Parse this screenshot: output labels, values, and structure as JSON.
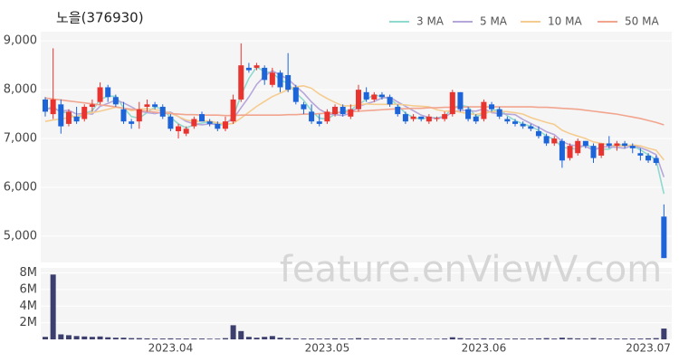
{
  "watermark": "feature.enViewV.com",
  "chart_data": [
    {
      "type": "candlestick",
      "title": "노을(376930)",
      "up_color": "#e8332f",
      "down_color": "#1c64d8",
      "open": [
        7800,
        7500,
        7700,
        7300,
        7450,
        7400,
        7650,
        7750,
        8050,
        7850,
        7600,
        7350,
        7350,
        7650,
        7700,
        7650,
        7450,
        7150,
        7100,
        7250,
        7500,
        7350,
        7300,
        7200,
        7350,
        7800,
        8450,
        8450,
        8450,
        8100,
        8350,
        8300,
        8050,
        7700,
        7550,
        7350,
        7350,
        7500,
        7650,
        7450,
        7600,
        7950,
        7800,
        7900,
        7850,
        7650,
        7500,
        7400,
        7450,
        7350,
        7400,
        7400,
        7500,
        7950,
        7600,
        7450,
        7400,
        7700,
        7600,
        7400,
        7350,
        7300,
        7250,
        7150,
        7050,
        6900,
        6950,
        6600,
        6700,
        6950,
        6850,
        6650,
        6900,
        6850,
        6900,
        6850,
        6700,
        6650,
        6600,
        5400
      ],
      "high": [
        7850,
        8850,
        7800,
        7600,
        7650,
        7700,
        7800,
        8150,
        8100,
        7900,
        7750,
        7400,
        7750,
        7800,
        7750,
        7700,
        7500,
        7300,
        7250,
        7450,
        7550,
        7400,
        7350,
        7450,
        7900,
        8950,
        8550,
        8550,
        8500,
        8450,
        8400,
        8750,
        8100,
        7750,
        7700,
        7500,
        7600,
        7700,
        7700,
        7700,
        8100,
        8050,
        7950,
        7950,
        7900,
        7700,
        7550,
        7500,
        7450,
        7500,
        7450,
        7550,
        8000,
        7950,
        7650,
        7500,
        7800,
        7750,
        7650,
        7450,
        7400,
        7350,
        7300,
        7250,
        7100,
        7050,
        7000,
        6900,
        7000,
        6950,
        6900,
        6900,
        7050,
        6950,
        6950,
        6900,
        6800,
        6700,
        6650,
        5650
      ],
      "low": [
        7450,
        7400,
        7100,
        7250,
        7300,
        7350,
        7550,
        7700,
        7750,
        7650,
        7300,
        7200,
        7200,
        7550,
        7600,
        7400,
        7150,
        7000,
        7050,
        7200,
        7350,
        7250,
        7150,
        7150,
        7300,
        7750,
        8350,
        8400,
        8100,
        8050,
        7950,
        7950,
        7700,
        7500,
        7300,
        7250,
        7300,
        7450,
        7450,
        7400,
        7550,
        7750,
        7750,
        7800,
        7650,
        7450,
        7300,
        7350,
        7350,
        7300,
        7350,
        7350,
        7450,
        7550,
        7350,
        7300,
        7350,
        7550,
        7400,
        7300,
        7250,
        7200,
        7150,
        7000,
        6850,
        6850,
        6400,
        6550,
        6650,
        6800,
        6500,
        6600,
        6800,
        6750,
        6800,
        6700,
        6550,
        6500,
        6450,
        4550
      ],
      "close": [
        7550,
        7800,
        7250,
        7550,
        7350,
        7650,
        7700,
        8050,
        7850,
        7700,
        7350,
        7300,
        7600,
        7700,
        7650,
        7450,
        7200,
        7250,
        7200,
        7400,
        7350,
        7300,
        7200,
        7350,
        7800,
        8500,
        8400,
        8500,
        8200,
        8350,
        8050,
        8000,
        7750,
        7600,
        7350,
        7300,
        7550,
        7650,
        7500,
        7600,
        8000,
        7800,
        7900,
        7850,
        7700,
        7500,
        7350,
        7450,
        7400,
        7450,
        7420,
        7500,
        7950,
        7600,
        7400,
        7350,
        7750,
        7600,
        7450,
        7350,
        7300,
        7250,
        7200,
        7050,
        6900,
        7000,
        6550,
        6850,
        6950,
        6850,
        6600,
        6900,
        6850,
        6900,
        6850,
        6800,
        6650,
        6550,
        6500,
        4550
      ],
      "series": [
        {
          "name": "3 MA",
          "color": "#8fd9cf",
          "values": [
            7600,
            7650,
            7533,
            7533,
            7383,
            7517,
            7567,
            7800,
            7867,
            7867,
            7633,
            7450,
            7417,
            7533,
            7650,
            7600,
            7433,
            7300,
            7217,
            7283,
            7317,
            7350,
            7283,
            7283,
            7450,
            7883,
            8233,
            8467,
            8367,
            8350,
            8200,
            8133,
            7933,
            7783,
            7567,
            7417,
            7400,
            7500,
            7567,
            7583,
            7700,
            7800,
            7900,
            7850,
            7817,
            7683,
            7517,
            7433,
            7400,
            7433,
            7423,
            7457,
            7623,
            7683,
            7650,
            7450,
            7500,
            7567,
            7600,
            7467,
            7367,
            7300,
            7250,
            7167,
            7050,
            6983,
            6817,
            6800,
            6783,
            6883,
            6800,
            6783,
            6783,
            6883,
            6867,
            6850,
            6767,
            6667,
            6567,
            5867
          ]
        },
        {
          "name": "5 MA",
          "color": "#b7a6d9",
          "values": [
            7600,
            7620,
            7560,
            7580,
            7500,
            7520,
            7500,
            7660,
            7720,
            7790,
            7730,
            7650,
            7560,
            7530,
            7510,
            7540,
            7540,
            7450,
            7350,
            7300,
            7280,
            7300,
            7290,
            7320,
            7400,
            7630,
            7850,
            8110,
            8280,
            8390,
            8300,
            8220,
            8070,
            7930,
            7750,
            7600,
            7510,
            7490,
            7470,
            7520,
            7660,
            7710,
            7760,
            7830,
            7850,
            7750,
            7660,
            7570,
            7480,
            7430,
            7410,
            7440,
            7540,
            7580,
            7570,
            7560,
            7610,
            7530,
            7510,
            7500,
            7490,
            7390,
            7310,
            7230,
            7140,
            7080,
            6940,
            6870,
            6850,
            6840,
            6760,
            6830,
            6830,
            6820,
            6800,
            6860,
            6810,
            6750,
            6670,
            6210
          ]
        },
        {
          "name": "10 MA",
          "color": "#f5cc8f",
          "values": [
            7350,
            7380,
            7400,
            7430,
            7460,
            7500,
            7530,
            7560,
            7600,
            7640,
            7620,
            7570,
            7600,
            7610,
            7590,
            7570,
            7520,
            7450,
            7380,
            7350,
            7360,
            7360,
            7320,
            7290,
            7310,
            7420,
            7540,
            7660,
            7760,
            7860,
            7930,
            8000,
            8060,
            8080,
            8030,
            7910,
            7820,
            7740,
            7670,
            7670,
            7690,
            7710,
            7700,
            7700,
            7700,
            7700,
            7690,
            7670,
            7660,
            7650,
            7590,
            7560,
            7570,
            7540,
            7510,
            7490,
            7530,
            7550,
            7560,
            7550,
            7530,
            7500,
            7430,
            7380,
            7330,
            7290,
            7170,
            7100,
            7050,
            7000,
            6930,
            6900,
            6870,
            6850,
            6850,
            6870,
            6850,
            6800,
            6760,
            6560
          ]
        },
        {
          "name": "50 MA",
          "color": "#f2a58e",
          "values": [
            7830,
            7810,
            7790,
            7770,
            7750,
            7730,
            7710,
            7690,
            7670,
            7650,
            7620,
            7600,
            7580,
            7560,
            7540,
            7520,
            7510,
            7500,
            7490,
            7490,
            7480,
            7480,
            7480,
            7470,
            7470,
            7480,
            7480,
            7480,
            7480,
            7480,
            7480,
            7490,
            7490,
            7500,
            7500,
            7510,
            7520,
            7530,
            7540,
            7550,
            7560,
            7570,
            7580,
            7590,
            7600,
            7610,
            7610,
            7620,
            7620,
            7630,
            7630,
            7640,
            7640,
            7640,
            7650,
            7650,
            7650,
            7650,
            7650,
            7650,
            7650,
            7650,
            7650,
            7640,
            7640,
            7630,
            7620,
            7610,
            7600,
            7580,
            7560,
            7540,
            7520,
            7500,
            7470,
            7440,
            7410,
            7370,
            7330,
            7280
          ]
        }
      ],
      "ylim": [
        4460,
        9190
      ],
      "yticks": [
        {
          "value": 5000,
          "label": "5,000"
        },
        {
          "value": 6000,
          "label": "6,000"
        },
        {
          "value": 7000,
          "label": "7,000"
        },
        {
          "value": 8000,
          "label": "8,000"
        },
        {
          "value": 9000,
          "label": "9,000"
        }
      ],
      "grid": true,
      "legend": "top-right"
    },
    {
      "type": "bar",
      "color": "#3c3f6e",
      "categories": [
        null,
        null,
        null,
        null,
        null,
        null,
        null,
        null,
        null,
        null,
        null,
        null,
        null,
        null,
        null,
        null,
        "2023.04",
        null,
        null,
        null,
        null,
        null,
        null,
        null,
        null,
        null,
        null,
        null,
        null,
        null,
        null,
        null,
        null,
        null,
        null,
        null,
        "2023.05",
        null,
        null,
        null,
        null,
        null,
        null,
        null,
        null,
        null,
        null,
        null,
        null,
        null,
        null,
        null,
        null,
        null,
        null,
        null,
        "2023.06",
        null,
        null,
        null,
        null,
        null,
        null,
        null,
        null,
        null,
        null,
        null,
        null,
        null,
        null,
        null,
        null,
        null,
        null,
        null,
        null,
        "2023.07",
        null,
        null
      ],
      "values": [
        300000,
        7800000,
        600000,
        500000,
        400000,
        350000,
        300000,
        350000,
        250000,
        200000,
        200000,
        150000,
        150000,
        120000,
        100000,
        100000,
        120000,
        100000,
        100000,
        100000,
        100000,
        80000,
        80000,
        150000,
        1700000,
        1000000,
        300000,
        200000,
        300000,
        400000,
        200000,
        150000,
        120000,
        100000,
        100000,
        100000,
        100000,
        120000,
        100000,
        100000,
        150000,
        100000,
        100000,
        100000,
        100000,
        100000,
        100000,
        100000,
        80000,
        80000,
        80000,
        100000,
        250000,
        150000,
        100000,
        100000,
        120000,
        100000,
        100000,
        100000,
        100000,
        100000,
        100000,
        120000,
        150000,
        100000,
        200000,
        150000,
        120000,
        100000,
        150000,
        100000,
        100000,
        100000,
        100000,
        100000,
        100000,
        120000,
        150000,
        1300000
      ],
      "ylim": [
        0,
        8600000
      ],
      "yticks": [
        {
          "value": 2000000,
          "label": "2M"
        },
        {
          "value": 4000000,
          "label": "4M"
        },
        {
          "value": 6000000,
          "label": "6M"
        },
        {
          "value": 8000000,
          "label": "8M"
        }
      ],
      "grid": true
    }
  ]
}
